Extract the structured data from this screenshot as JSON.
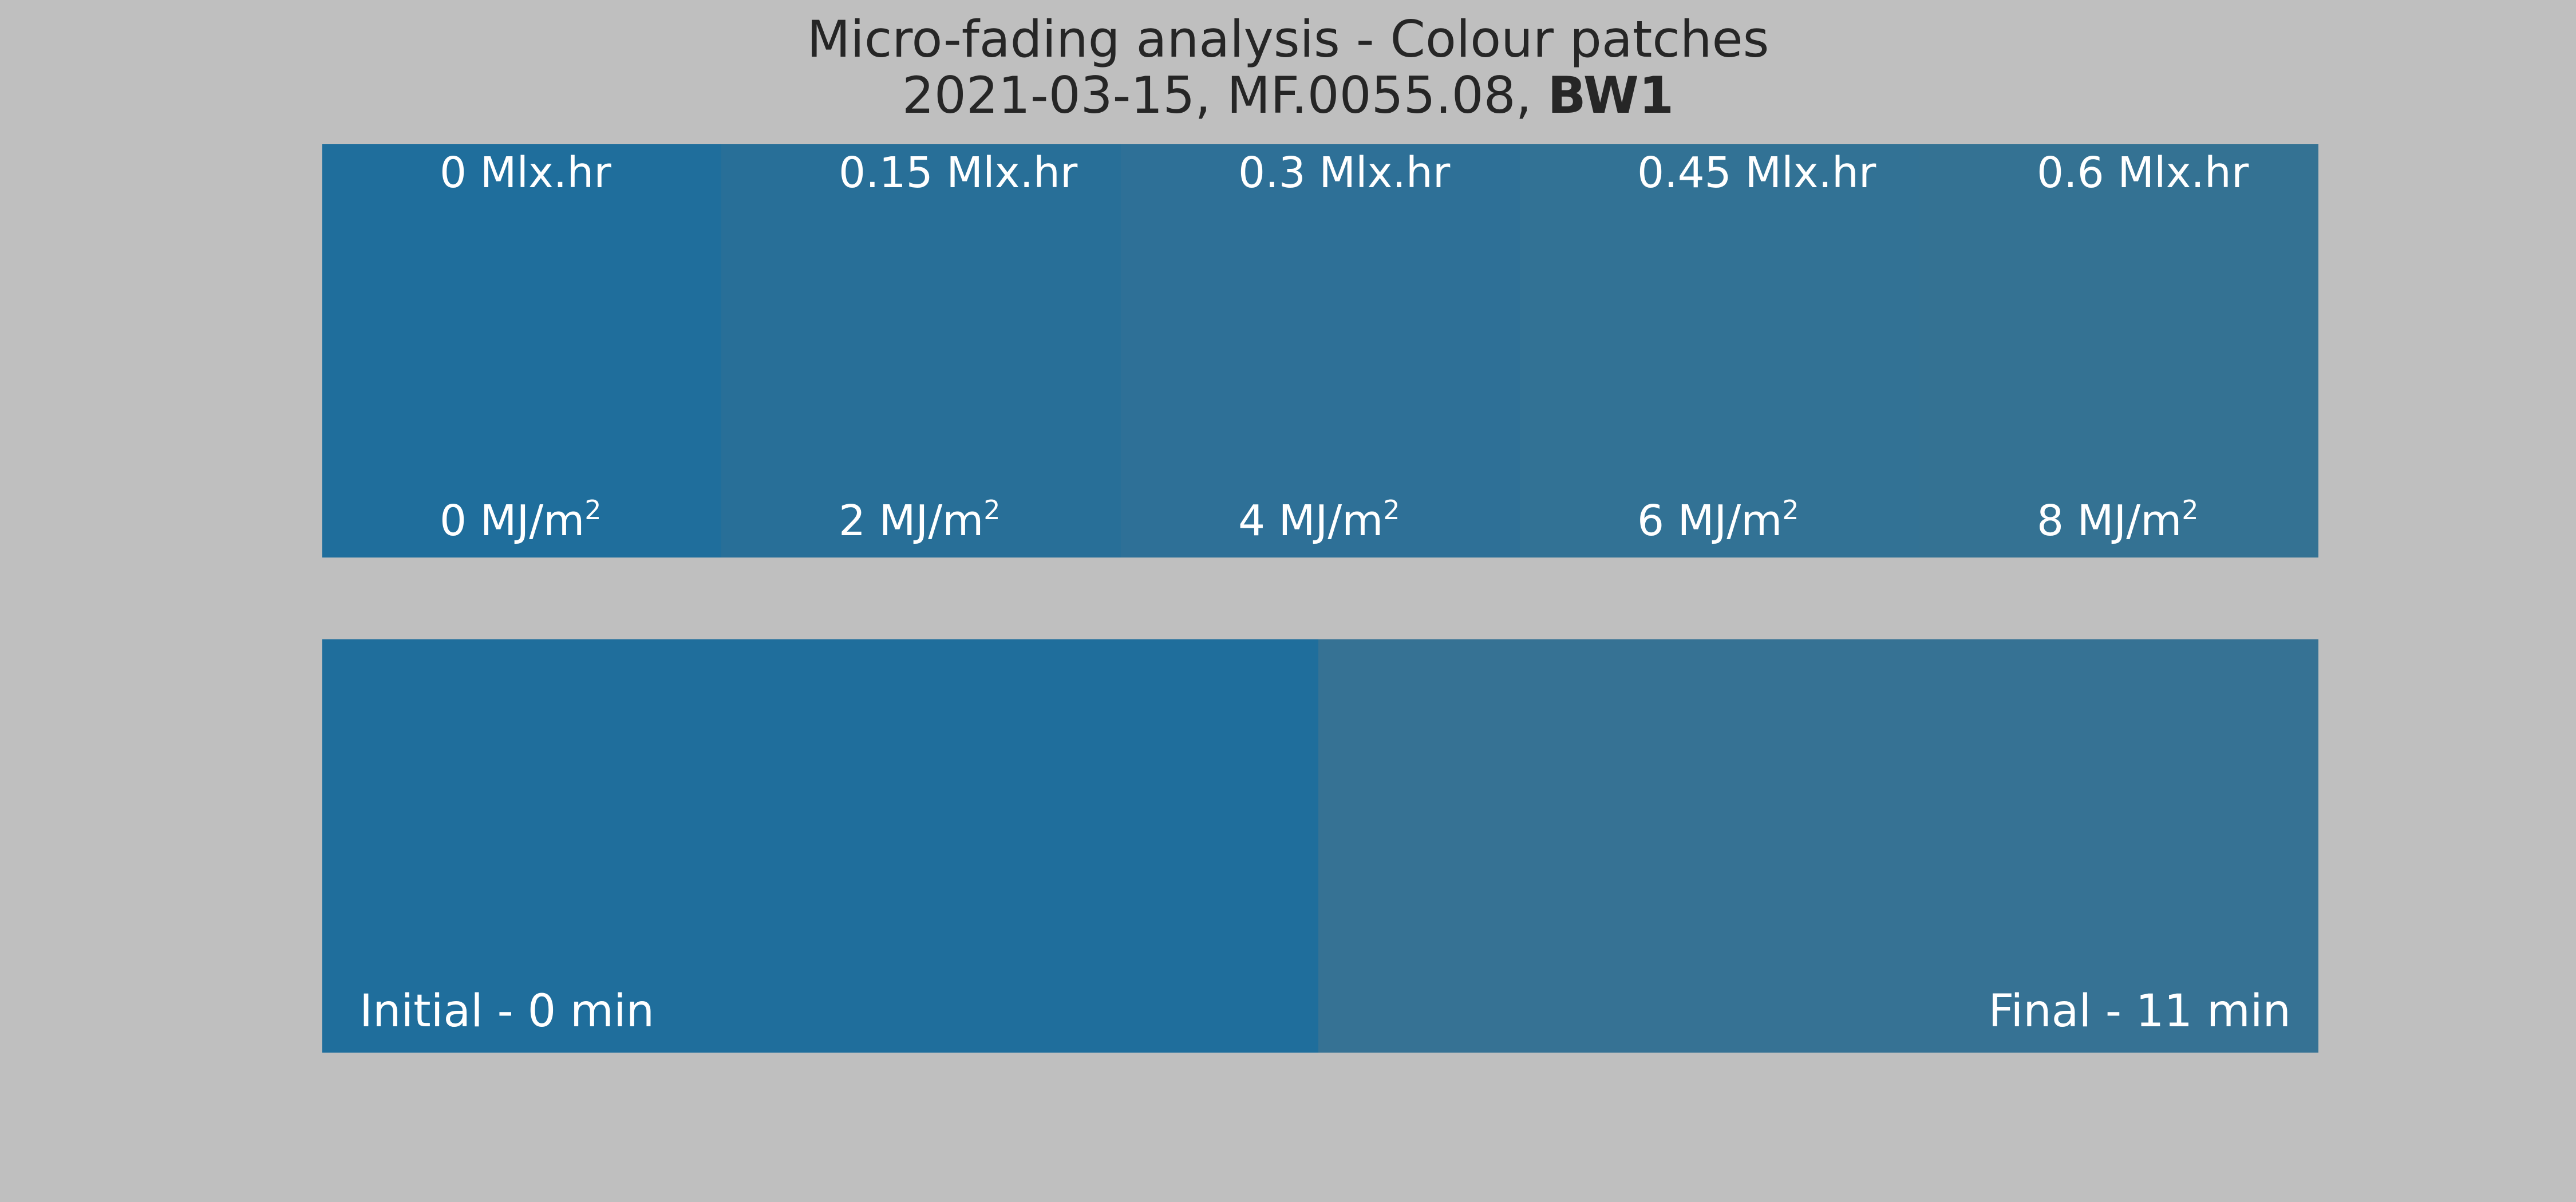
{
  "title": {
    "line1": "Micro-fading analysis - Colour patches",
    "line2_prefix": "2021-03-15, MF.0055.08, ",
    "line2_bold": "BW1"
  },
  "chart_data": {
    "type": "colour-patches",
    "exposure_patches": [
      {
        "illuminance_dose": "0 Mlx.hr",
        "radiant_dose_value": "0 MJ/m",
        "radiant_dose_exponent": "2",
        "color": "#1f6e9c"
      },
      {
        "illuminance_dose": "0.15 Mlx.hr",
        "radiant_dose_value": "2 MJ/m",
        "radiant_dose_exponent": "2",
        "color": "#286f98"
      },
      {
        "illuminance_dose": "0.3 Mlx.hr",
        "radiant_dose_value": "4 MJ/m",
        "radiant_dose_exponent": "2",
        "color": "#2e7097"
      },
      {
        "illuminance_dose": "0.45 Mlx.hr",
        "radiant_dose_value": "6 MJ/m",
        "radiant_dose_exponent": "2",
        "color": "#327295"
      },
      {
        "illuminance_dose": "0.6 Mlx.hr",
        "radiant_dose_value": "8 MJ/m",
        "radiant_dose_exponent": "2",
        "color": "#347293"
      }
    ],
    "time_patches": [
      {
        "label": "Initial - 0 min",
        "color": "#1f6e9c"
      },
      {
        "label": "Final - 11 min",
        "color": "#367294"
      }
    ]
  }
}
